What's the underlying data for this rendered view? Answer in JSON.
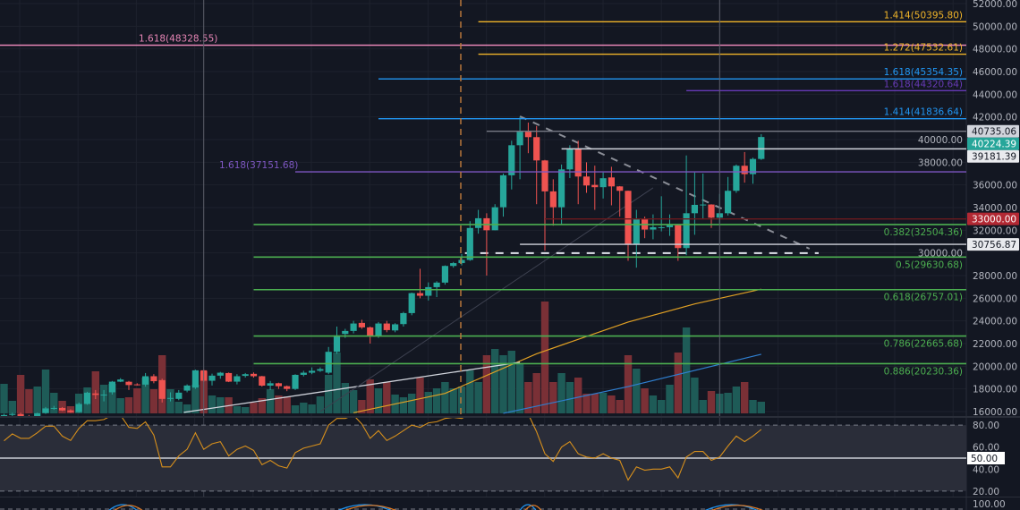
{
  "colors": {
    "background": "#131722",
    "up": "#26a69a",
    "down": "#ef5350",
    "volume_up": "#1e5b57",
    "volume_down": "#7a3036",
    "grid": "#1e222d",
    "axis_text": "#b2b5be",
    "rsi_line": "#d68f1c",
    "rsi_band": "#2a2d39",
    "ma_orange": "#e0a024",
    "ma_blue": "#2f7fd0"
  },
  "chart_data": {
    "type": "candlestick",
    "title": "",
    "price_axis": {
      "min": 16000,
      "max": 52000,
      "ticks": [
        16000,
        18000,
        20000,
        22000,
        24000,
        26000,
        28000,
        30000,
        32000,
        34000,
        36000,
        38000,
        40000,
        42000,
        44000,
        46000,
        48000,
        50000,
        52000
      ],
      "tick_labels": [
        "16000.00",
        "18000.00",
        "20000.00",
        "22000.00",
        "24000.00",
        "26000.00",
        "28000.00",
        "30000.00",
        "32000.00",
        "34000.00",
        "36000.00",
        "38000.00",
        "40000.00",
        "42000.00",
        "44000.00",
        "46000.00",
        "48000.00",
        "50000.00",
        "52000.00"
      ]
    },
    "candles": [
      [
        15600,
        15800,
        15400,
        15700
      ],
      [
        15700,
        15900,
        15500,
        15800
      ],
      [
        15800,
        15900,
        15500,
        15600
      ],
      [
        15600,
        15700,
        15400,
        15500
      ],
      [
        15500,
        15900,
        15400,
        15850
      ],
      [
        15880,
        16400,
        15800,
        16280
      ],
      [
        16280,
        16500,
        16150,
        16320
      ],
      [
        16320,
        16400,
        16050,
        16100
      ],
      [
        16100,
        16200,
        15900,
        15950
      ],
      [
        15950,
        16800,
        15900,
        16670
      ],
      [
        16670,
        17750,
        16600,
        17670
      ],
      [
        17600,
        17900,
        17100,
        17470
      ],
      [
        17470,
        17900,
        16900,
        17500
      ],
      [
        17700,
        18700,
        17500,
        18640
      ],
      [
        18640,
        18950,
        18600,
        18830
      ],
      [
        18630,
        18700,
        17900,
        18340
      ],
      [
        18400,
        18500,
        18300,
        18350
      ],
      [
        18380,
        19400,
        18200,
        19120
      ],
      [
        19120,
        19300,
        18500,
        18680
      ],
      [
        18775,
        18900,
        16800,
        17120
      ],
      [
        17120,
        17700,
        16900,
        17200
      ],
      [
        17120,
        17900,
        17000,
        17670
      ],
      [
        17850,
        18400,
        17700,
        18300
      ],
      [
        18120,
        19700,
        18000,
        19640
      ],
      [
        19640,
        19700,
        18600,
        18720
      ],
      [
        18720,
        19350,
        18300,
        19170
      ],
      [
        19170,
        19500,
        18900,
        19430
      ],
      [
        19400,
        19450,
        18600,
        18640
      ],
      [
        18640,
        19300,
        18400,
        19120
      ],
      [
        19150,
        19400,
        19000,
        19300
      ],
      [
        19330,
        19450,
        19000,
        19120
      ],
      [
        19120,
        19150,
        18200,
        18290
      ],
      [
        18290,
        18700,
        17900,
        18500
      ],
      [
        18500,
        18550,
        18000,
        18240
      ],
      [
        18240,
        18300,
        17800,
        18000
      ],
      [
        18000,
        19300,
        17900,
        19240
      ],
      [
        19240,
        19600,
        19100,
        19430
      ],
      [
        19430,
        19900,
        19300,
        19600
      ],
      [
        19600,
        19900,
        19500,
        19750
      ],
      [
        19433,
        21700,
        19300,
        21274
      ],
      [
        21274,
        23500,
        21100,
        22720
      ],
      [
        22850,
        23300,
        22500,
        23115
      ],
      [
        23115,
        24000,
        22900,
        23770
      ],
      [
        23825,
        24100,
        23300,
        23430
      ],
      [
        23430,
        23500,
        22000,
        22640
      ],
      [
        22640,
        23900,
        22500,
        23770
      ],
      [
        23770,
        24000,
        23000,
        23190
      ],
      [
        23160,
        23800,
        23000,
        23700
      ],
      [
        23720,
        24800,
        23500,
        24690
      ],
      [
        24690,
        26500,
        24500,
        26450
      ],
      [
        26450,
        28600,
        26000,
        26220
      ],
      [
        26220,
        27400,
        25800,
        26980
      ],
      [
        26980,
        27500,
        26100,
        27380
      ],
      [
        27380,
        28900,
        27200,
        28850
      ],
      [
        28850,
        29200,
        28700,
        29100
      ],
      [
        29100,
        29900,
        28900,
        29380
      ],
      [
        29380,
        32800,
        29300,
        32200
      ],
      [
        32200,
        33800,
        31700,
        33060
      ],
      [
        33060,
        33500,
        28000,
        32000
      ],
      [
        32000,
        34300,
        32000,
        34030
      ],
      [
        34030,
        37000,
        33200,
        36850
      ],
      [
        36850,
        39900,
        35600,
        39500
      ],
      [
        39500,
        42000,
        36500,
        40690
      ],
      [
        40690,
        41500,
        38800,
        40215
      ],
      [
        40215,
        41200,
        34300,
        38160
      ],
      [
        38160,
        38200,
        30200,
        35430
      ],
      [
        35430,
        36500,
        32400,
        34030
      ],
      [
        34030,
        37800,
        32500,
        37370
      ],
      [
        37370,
        39500,
        36600,
        39160
      ],
      [
        39160,
        39900,
        34300,
        36740
      ],
      [
        36740,
        38000,
        35300,
        35950
      ],
      [
        36000,
        37700,
        33800,
        35800
      ],
      [
        35800,
        37100,
        34800,
        36590
      ],
      [
        36660,
        37600,
        34200,
        35870
      ],
      [
        35870,
        35900,
        33200,
        35480
      ],
      [
        35480,
        35500,
        29300,
        30750
      ],
      [
        30750,
        33800,
        28700,
        32980
      ],
      [
        32980,
        33200,
        31300,
        32060
      ],
      [
        32060,
        33400,
        31200,
        32270
      ],
      [
        32270,
        35000,
        31900,
        32270
      ],
      [
        32270,
        33400,
        31500,
        32450
      ],
      [
        32450,
        32500,
        29300,
        30430
      ],
      [
        30430,
        38600,
        29800,
        33500
      ],
      [
        33500,
        37100,
        31600,
        34240
      ],
      [
        34240,
        37000,
        33000,
        34270
      ],
      [
        34270,
        34300,
        32200,
        33110
      ],
      [
        33110,
        35200,
        32600,
        33500
      ],
      [
        33500,
        36700,
        33300,
        35480
      ],
      [
        35480,
        37800,
        35300,
        37690
      ],
      [
        37690,
        38900,
        36200,
        36950
      ],
      [
        36950,
        38400,
        36100,
        38290
      ],
      [
        38290,
        40480,
        38200,
        40224.39
      ]
    ],
    "volume": [
      33,
      14,
      43,
      27,
      30,
      49,
      23,
      14,
      8,
      22,
      29,
      47,
      32,
      33,
      17,
      18,
      28,
      40,
      27,
      65,
      27,
      13,
      10,
      32,
      47,
      20,
      18,
      18,
      8,
      7,
      12,
      17,
      27,
      20,
      19,
      9,
      12,
      10,
      19,
      43,
      68,
      34,
      26,
      15,
      38,
      28,
      35,
      21,
      18,
      22,
      40,
      24,
      28,
      35,
      28,
      30,
      48,
      35,
      65,
      72,
      65,
      70,
      55,
      35,
      45,
      125,
      35,
      45,
      35,
      40,
      22,
      22,
      23,
      20,
      15,
      65,
      50,
      28,
      20,
      15,
      32,
      68,
      96,
      40,
      15,
      25,
      22,
      23,
      30,
      35,
      15,
      13
    ],
    "moving_averages": [
      {
        "name": "orange",
        "points": [
          [
            42,
            15900
          ],
          [
            53,
            17600
          ],
          [
            64,
            21100
          ],
          [
            75,
            23900
          ],
          [
            83,
            25500
          ],
          [
            91,
            26800
          ]
        ]
      },
      {
        "name": "blue",
        "points": [
          [
            60,
            15850
          ],
          [
            75,
            18200
          ],
          [
            91,
            21060
          ]
        ]
      }
    ],
    "trendlines": [
      {
        "name": "support-trendline",
        "style": "solid-white",
        "points": [
          [
            21.6,
            15930
          ],
          [
            62,
            20350
          ]
        ]
      },
      {
        "name": "thin-diagonal",
        "style": "thin-gray",
        "points": [
          [
            38,
            16000
          ],
          [
            78,
            35740
          ]
        ]
      },
      {
        "name": "descending-resistance",
        "style": "dashed-gray",
        "points": [
          [
            62,
            42050
          ],
          [
            96.8,
            30370
          ]
        ]
      },
      {
        "name": "range-support",
        "style": "dashed-white",
        "points": [
          [
            55.4,
            29980
          ],
          [
            97.9,
            29980
          ]
        ]
      }
    ],
    "levels": [
      {
        "label": "1.414(50395.80)",
        "price": 50395.8,
        "color": "#f0b429",
        "from_bar": 57,
        "label_position": "right-above"
      },
      {
        "label": "1.618(48328.55)",
        "price": 48328.55,
        "color": "#e685b5",
        "from_bar": -1,
        "label_position": "left-above"
      },
      {
        "label": "1.272(47532.61)",
        "price": 47532.61,
        "color": "#f0b429",
        "from_bar": 57,
        "label_position": "right-above"
      },
      {
        "label": "1.618(45354.35)",
        "price": 45354.35,
        "color": "#2196f3",
        "from_bar": 45,
        "label_position": "right-above"
      },
      {
        "label": "1.618(44320.64)",
        "price": 44320.64,
        "color": "#673ab7",
        "from_bar": 82,
        "label_position": "right-above"
      },
      {
        "label": "1.414(41836.64)",
        "price": 41836.64,
        "color": "#2196f3",
        "from_bar": 45,
        "label_position": "right-above"
      },
      {
        "label": "1.618(37151.68)",
        "price": 37151.68,
        "color": "#7e57c2",
        "from_bar": 35,
        "label_position": "left-above"
      },
      {
        "label": "0.382(32504.36)",
        "price": 32504.36,
        "color": "#4caf50",
        "from_bar": 30,
        "label_position": "right-below"
      },
      {
        "label": "0.5(29630.68)",
        "price": 29630.68,
        "color": "#4caf50",
        "from_bar": 30,
        "label_position": "right-below"
      },
      {
        "label": "0.618(26757.01)",
        "price": 26757.01,
        "color": "#4caf50",
        "from_bar": 30,
        "label_position": "right-below"
      },
      {
        "label": "0.786(22665.68)",
        "price": 22665.68,
        "color": "#4caf50",
        "from_bar": 30,
        "label_position": "right-below"
      },
      {
        "label": "0.886(20230.36)",
        "price": 20230.36,
        "color": "#4caf50",
        "from_bar": 30,
        "label_position": "right-below"
      }
    ],
    "price_markers": [
      {
        "label": "40735.06",
        "price": 40735.06,
        "line_color": "#787b86",
        "box_color": "#d1d4dc",
        "text_color": "#131722",
        "from_bar": 58
      },
      {
        "label": "40224.39",
        "price": 40224.39,
        "line_color": "",
        "box_color": "#26a69a",
        "text_color": "#ffffff",
        "from_bar": null
      },
      {
        "label": "39181.39",
        "price": 39181.39,
        "line_color": "#d1d4dc",
        "box_color": "#e9eaee",
        "text_color": "#131722",
        "from_bar": 67
      },
      {
        "label": "33000.00",
        "price": 33000.0,
        "line_color": "#6b1a1e",
        "box_color": "#b22833",
        "text_color": "#ffffff",
        "from_bar": 65
      },
      {
        "label": "30756.87",
        "price": 30756.87,
        "line_color": "#d1d4dc",
        "box_color": "#e9eaee",
        "text_color": "#131722",
        "from_bar": 62
      }
    ],
    "vertical_markers": [
      {
        "name": "vertical-line-1",
        "bar": 24,
        "style": "solid-gray"
      },
      {
        "name": "vertical-line-2",
        "bar": 86,
        "style": "solid-gray"
      },
      {
        "name": "vertical-dashed-orange",
        "bar": 55,
        "style": "dashed-orange"
      }
    ],
    "rsi": {
      "values": [
        65.7,
        72,
        68,
        68,
        73,
        79,
        79,
        70,
        66,
        77,
        84,
        84,
        85,
        89,
        89,
        78,
        77,
        83,
        71,
        42,
        42,
        52,
        58,
        73,
        58,
        63,
        65,
        52,
        58,
        61,
        57,
        44,
        48,
        43,
        41,
        55,
        59,
        61,
        63,
        80,
        86,
        86,
        89,
        81,
        68,
        75,
        66,
        70,
        75,
        80,
        78,
        82,
        83,
        86,
        87,
        86,
        90,
        90,
        87,
        89,
        90,
        90,
        90,
        90,
        74,
        54,
        47,
        60,
        65,
        54,
        51,
        50,
        54,
        50,
        48,
        30,
        42,
        39,
        40,
        40,
        42,
        32,
        51,
        56,
        56,
        48,
        51,
        61,
        70,
        65,
        70,
        76
      ],
      "upper_band": 80,
      "lower_band": 20,
      "ticks": [
        80,
        60,
        40,
        20
      ],
      "tick_labels": [
        "80.00",
        "60.00",
        "40.00",
        "20.00"
      ],
      "mid_value": 50,
      "mid_label": "50.00"
    },
    "lower_indicator": {
      "tick_label": "100.00"
    }
  }
}
